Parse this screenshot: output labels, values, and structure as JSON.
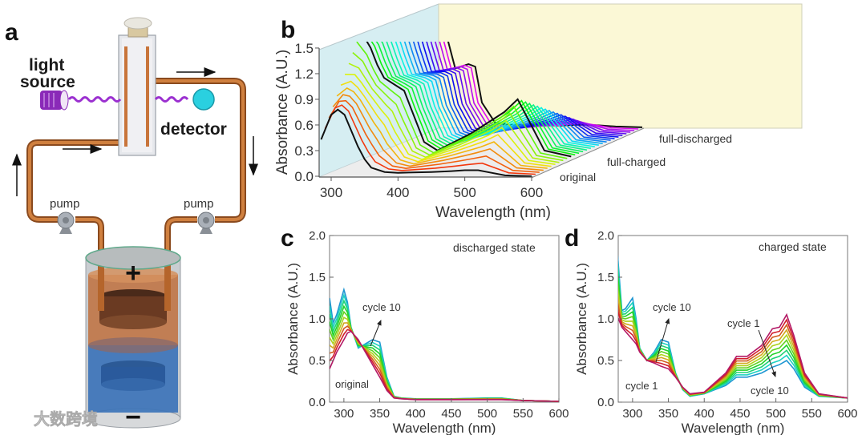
{
  "panel_a": {
    "label": "a",
    "light_source_line1": "light",
    "light_source_line2": "source",
    "detector": "detector",
    "pump_left": "pump",
    "pump_right": "pump",
    "plus": "+",
    "minus": "−",
    "colors": {
      "tube": "#b5652b",
      "light": "#9b30d0",
      "detector": "#2ad0e0",
      "catholyte": "#c0703e",
      "anolyte": "#3a72b8"
    }
  },
  "watermark": "大数跨境",
  "chart_data": [
    {
      "panel": "b",
      "type": "line",
      "view": "3d-waterfall",
      "xlabel": "Wavelength (nm)",
      "ylabel": "Absorbance (A.U.)",
      "xlim": [
        285,
        600
      ],
      "ylim": [
        0,
        1.5
      ],
      "xtick_labels": [
        "300",
        "400",
        "500",
        "600"
      ],
      "xticks": [
        300,
        400,
        500,
        600
      ],
      "ytick_labels": [
        "0.0",
        "0.3",
        "0.6",
        "0.9",
        "1.2",
        "1.5"
      ],
      "yticks": [
        0,
        0.3,
        0.6,
        0.9,
        1.2,
        1.5
      ],
      "depth_labels": [
        "original",
        "full-charged",
        "full-discharged"
      ],
      "trace_count": 29,
      "x": [
        285,
        300,
        310,
        320,
        340,
        350,
        360,
        380,
        400,
        450,
        480,
        500,
        520,
        540,
        560,
        600
      ],
      "series": [
        {
          "name": "original",
          "values": [
            0.43,
            0.72,
            0.78,
            0.72,
            0.35,
            0.2,
            0.1,
            0.05,
            0.04,
            0.05,
            0.06,
            0.07,
            0.07,
            0.04,
            0.01,
            0.0
          ]
        },
        {
          "name": "full-charged",
          "values": [
            1.5,
            1.3,
            1.1,
            0.95,
            0.85,
            0.8,
            0.6,
            0.2,
            0.1,
            0.3,
            0.45,
            0.55,
            0.7,
            0.4,
            0.1,
            0.03
          ]
        },
        {
          "name": "full-discharged",
          "values": [
            1.2,
            1.3,
            1.0,
            0.7,
            0.75,
            0.72,
            0.3,
            0.06,
            0.04,
            0.03,
            0.03,
            0.04,
            0.04,
            0.03,
            0.02,
            0.01
          ]
        }
      ]
    },
    {
      "panel": "c",
      "type": "line",
      "title": "discharged state",
      "xlabel": "Wavelength (nm)",
      "ylabel": "Absorbance (A.U.)",
      "xlim": [
        280,
        600
      ],
      "ylim": [
        0,
        2.0
      ],
      "xticks": [
        300,
        350,
        400,
        450,
        500,
        550,
        600
      ],
      "xtick_labels": [
        "300",
        "350",
        "400",
        "450",
        "500",
        "550",
        "600"
      ],
      "yticks": [
        0,
        0.5,
        1.0,
        1.5,
        2.0
      ],
      "ytick_labels": [
        "0.0",
        "0.5",
        "1.0",
        "1.5",
        "2.0"
      ],
      "annotations": [
        "cycle 10",
        "original"
      ],
      "curve_count": 10,
      "x": [
        280,
        285,
        290,
        300,
        305,
        310,
        320,
        330,
        340,
        350,
        360,
        370,
        380,
        400,
        450,
        500,
        520,
        550,
        600
      ],
      "series": [
        {
          "name": "original",
          "values": [
            0.4,
            0.5,
            0.6,
            0.75,
            0.83,
            0.85,
            0.75,
            0.6,
            0.45,
            0.3,
            0.14,
            0.05,
            0.04,
            0.03,
            0.03,
            0.03,
            0.03,
            0.02,
            0.01
          ]
        },
        {
          "name": "cycle 10",
          "values": [
            1.25,
            0.95,
            1.05,
            1.35,
            1.2,
            0.9,
            0.65,
            0.7,
            0.75,
            0.72,
            0.3,
            0.07,
            0.05,
            0.04,
            0.04,
            0.05,
            0.05,
            0.02,
            0.01
          ]
        }
      ]
    },
    {
      "panel": "d",
      "type": "line",
      "title": "charged state",
      "xlabel": "Wavelength (nm)",
      "ylabel": "Absorbance (A.U.)",
      "xlim": [
        280,
        600
      ],
      "ylim": [
        0,
        2.0
      ],
      "xticks": [
        300,
        350,
        400,
        450,
        500,
        550,
        600
      ],
      "xtick_labels": [
        "300",
        "350",
        "400",
        "450",
        "500",
        "550",
        "600"
      ],
      "yticks": [
        0,
        0.5,
        1.0,
        1.5,
        2.0
      ],
      "ytick_labels": [
        "0.0",
        "0.5",
        "1.0",
        "1.5",
        "2.0"
      ],
      "annotations": [
        "cycle 10",
        "cycle 1",
        "cycle 1",
        "cycle 10"
      ],
      "curve_count": 10,
      "x": [
        278,
        285,
        290,
        300,
        305,
        310,
        320,
        330,
        340,
        350,
        360,
        370,
        380,
        400,
        430,
        445,
        460,
        480,
        495,
        505,
        515,
        525,
        540,
        560,
        600
      ],
      "series": [
        {
          "name": "cycle 1",
          "values": [
            1.05,
            0.9,
            0.85,
            0.75,
            0.7,
            0.6,
            0.5,
            0.47,
            0.43,
            0.4,
            0.3,
            0.18,
            0.1,
            0.12,
            0.35,
            0.55,
            0.55,
            0.68,
            0.88,
            0.9,
            1.05,
            0.8,
            0.35,
            0.1,
            0.05
          ]
        },
        {
          "name": "cycle 10",
          "values": [
            1.9,
            1.1,
            1.12,
            1.25,
            1.0,
            0.65,
            0.5,
            0.6,
            0.75,
            0.72,
            0.35,
            0.15,
            0.07,
            0.1,
            0.2,
            0.3,
            0.3,
            0.35,
            0.42,
            0.45,
            0.5,
            0.4,
            0.18,
            0.07,
            0.05
          ]
        }
      ]
    }
  ]
}
